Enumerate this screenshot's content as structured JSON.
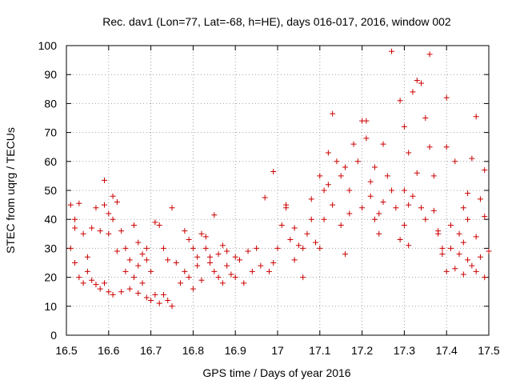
{
  "chart_data": {
    "type": "scatter",
    "title": "Rec. dav1 (Lon=77, Lat=-68, h=HE), days 016-017, 2016, window 002",
    "xlabel": "GPS time / Days of year 2016",
    "ylabel": "STEC from uqrg / TECUs",
    "xlim": [
      16.5,
      17.5
    ],
    "ylim": [
      0,
      100
    ],
    "xticks": [
      "16.5",
      "16.6",
      "16.7",
      "16.8",
      "16.9",
      "17",
      "17.1",
      "17.2",
      "17.3",
      "17.4",
      "17.5"
    ],
    "yticks": [
      "0",
      "10",
      "20",
      "30",
      "40",
      "50",
      "60",
      "70",
      "80",
      "90",
      "100"
    ],
    "grid": true,
    "marker": "plus",
    "color": "#cc0000",
    "points": [
      [
        16.51,
        45
      ],
      [
        16.52,
        40
      ],
      [
        16.53,
        45.5
      ],
      [
        16.51,
        30
      ],
      [
        16.52,
        25
      ],
      [
        16.53,
        20
      ],
      [
        16.54,
        18
      ],
      [
        16.55,
        22
      ],
      [
        16.56,
        19
      ],
      [
        16.57,
        17.5
      ],
      [
        16.58,
        16
      ],
      [
        16.59,
        18
      ],
      [
        16.52,
        37
      ],
      [
        16.54,
        35
      ],
      [
        16.55,
        27
      ],
      [
        16.56,
        37
      ],
      [
        16.57,
        44
      ],
      [
        16.58,
        36
      ],
      [
        16.59,
        45
      ],
      [
        16.6,
        42
      ],
      [
        16.6,
        35
      ],
      [
        16.61,
        40
      ],
      [
        16.62,
        29
      ],
      [
        16.59,
        53.5
      ],
      [
        16.61,
        48
      ],
      [
        16.62,
        46
      ],
      [
        16.63,
        36
      ],
      [
        16.64,
        30
      ],
      [
        16.64,
        22
      ],
      [
        16.65,
        26
      ],
      [
        16.66,
        20
      ],
      [
        16.67,
        24
      ],
      [
        16.68,
        18
      ],
      [
        16.69,
        30
      ],
      [
        16.6,
        15
      ],
      [
        16.61,
        14
      ],
      [
        16.63,
        15
      ],
      [
        16.65,
        16
      ],
      [
        16.67,
        14.5
      ],
      [
        16.69,
        13
      ],
      [
        16.7,
        12
      ],
      [
        16.71,
        14
      ],
      [
        16.72,
        11
      ],
      [
        16.73,
        14
      ],
      [
        16.74,
        12
      ],
      [
        16.75,
        10
      ],
      [
        16.66,
        38
      ],
      [
        16.67,
        32
      ],
      [
        16.68,
        28
      ],
      [
        16.69,
        26
      ],
      [
        16.7,
        22
      ],
      [
        16.71,
        39
      ],
      [
        16.72,
        38
      ],
      [
        16.73,
        30
      ],
      [
        16.74,
        26
      ],
      [
        16.75,
        44
      ],
      [
        16.76,
        25
      ],
      [
        16.77,
        18
      ],
      [
        16.78,
        22
      ],
      [
        16.79,
        20
      ],
      [
        16.8,
        16
      ],
      [
        16.81,
        24
      ],
      [
        16.82,
        19
      ],
      [
        16.83,
        30
      ],
      [
        16.84,
        27
      ],
      [
        16.85,
        41.5
      ],
      [
        16.86,
        28
      ],
      [
        16.87,
        18
      ],
      [
        16.88,
        24
      ],
      [
        16.89,
        21
      ],
      [
        16.78,
        36
      ],
      [
        16.79,
        33
      ],
      [
        16.8,
        30
      ],
      [
        16.81,
        27
      ],
      [
        16.82,
        35
      ],
      [
        16.83,
        34
      ],
      [
        16.84,
        25
      ],
      [
        16.85,
        22
      ],
      [
        16.86,
        20
      ],
      [
        16.87,
        31
      ],
      [
        16.88,
        29
      ],
      [
        16.9,
        27
      ],
      [
        16.9,
        20
      ],
      [
        16.91,
        26
      ],
      [
        16.92,
        18
      ],
      [
        16.93,
        29
      ],
      [
        16.94,
        22
      ],
      [
        16.95,
        30
      ],
      [
        16.96,
        24
      ],
      [
        16.97,
        47.5
      ],
      [
        16.98,
        22
      ],
      [
        16.99,
        56.5
      ],
      [
        17,
        30
      ],
      [
        16.99,
        25
      ],
      [
        17.01,
        38
      ],
      [
        17.02,
        44
      ],
      [
        17.03,
        33
      ],
      [
        17.04,
        26
      ],
      [
        17.05,
        31
      ],
      [
        17.06,
        20
      ],
      [
        17.07,
        35
      ],
      [
        17.08,
        40
      ],
      [
        17.09,
        32
      ],
      [
        17.1,
        30
      ],
      [
        17.11,
        40
      ],
      [
        17.12,
        52
      ],
      [
        17.02,
        45
      ],
      [
        17.04,
        37
      ],
      [
        17.06,
        30
      ],
      [
        17.08,
        47
      ],
      [
        17.1,
        55
      ],
      [
        17.11,
        50
      ],
      [
        17.12,
        63
      ],
      [
        17.13,
        45
      ],
      [
        17.14,
        60
      ],
      [
        17.15,
        38
      ],
      [
        17.16,
        28
      ],
      [
        17.17,
        42
      ],
      [
        17.13,
        76.5
      ],
      [
        17.15,
        55
      ],
      [
        17.16,
        58
      ],
      [
        17.17,
        50
      ],
      [
        17.18,
        66
      ],
      [
        17.19,
        60
      ],
      [
        17.2,
        44
      ],
      [
        17.21,
        68
      ],
      [
        17.22,
        53
      ],
      [
        17.23,
        40
      ],
      [
        17.24,
        35
      ],
      [
        17.25,
        46
      ],
      [
        17.2,
        74
      ],
      [
        17.21,
        74
      ],
      [
        17.22,
        48
      ],
      [
        17.23,
        58
      ],
      [
        17.24,
        42
      ],
      [
        17.25,
        66
      ],
      [
        17.26,
        55
      ],
      [
        17.27,
        50
      ],
      [
        17.28,
        44
      ],
      [
        17.29,
        33
      ],
      [
        17.3,
        50
      ],
      [
        17.31,
        45
      ],
      [
        17.27,
        98
      ],
      [
        17.29,
        81
      ],
      [
        17.3,
        72
      ],
      [
        17.31,
        63
      ],
      [
        17.32,
        84
      ],
      [
        17.33,
        88
      ],
      [
        17.34,
        87
      ],
      [
        17.35,
        75
      ],
      [
        17.36,
        97
      ],
      [
        17.37,
        43
      ],
      [
        17.38,
        35
      ],
      [
        17.39,
        30
      ],
      [
        17.3,
        38
      ],
      [
        17.31,
        31
      ],
      [
        17.32,
        48
      ],
      [
        17.33,
        56
      ],
      [
        17.34,
        44
      ],
      [
        17.35,
        40
      ],
      [
        17.36,
        65
      ],
      [
        17.37,
        55
      ],
      [
        17.38,
        36
      ],
      [
        17.39,
        28
      ],
      [
        17.4,
        22
      ],
      [
        17.41,
        30
      ],
      [
        17.4,
        82
      ],
      [
        17.4,
        65
      ],
      [
        17.41,
        38
      ],
      [
        17.42,
        60
      ],
      [
        17.43,
        35
      ],
      [
        17.44,
        44
      ],
      [
        17.45,
        49
      ],
      [
        17.46,
        61
      ],
      [
        17.47,
        75.5
      ],
      [
        17.48,
        47
      ],
      [
        17.49,
        57
      ],
      [
        17.49,
        41
      ],
      [
        17.42,
        23
      ],
      [
        17.43,
        28
      ],
      [
        17.44,
        21
      ],
      [
        17.45,
        26
      ],
      [
        17.46,
        24
      ],
      [
        17.47,
        22
      ],
      [
        17.48,
        27
      ],
      [
        17.49,
        20
      ],
      [
        17.5,
        29
      ],
      [
        17.47,
        34
      ],
      [
        17.45,
        40
      ],
      [
        17.44,
        32
      ]
    ]
  }
}
